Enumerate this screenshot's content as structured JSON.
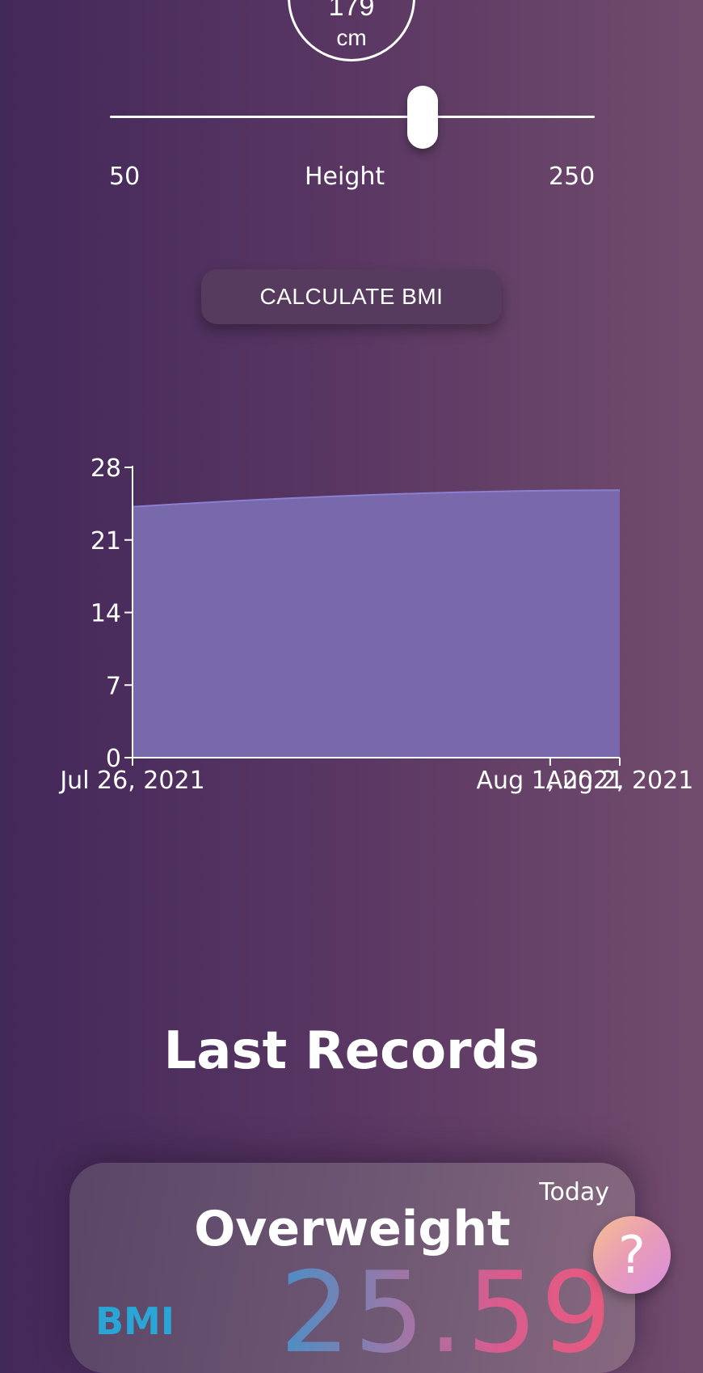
{
  "height_display": {
    "value": "179",
    "unit": "cm"
  },
  "height_slider": {
    "label": "Height",
    "min": "50",
    "max": "250",
    "value": 179
  },
  "calculate_button": {
    "label": "CALCULATE BMI"
  },
  "chart_data": {
    "type": "area",
    "title": "",
    "xlabel": "",
    "ylabel": "",
    "x": [
      "2021-07-26",
      "2021-08-02"
    ],
    "values": [
      24.2,
      25.8
    ],
    "y_ticks": [
      "0",
      "7",
      "14",
      "21",
      "28"
    ],
    "x_ticks": [
      "Jul 26, 2021",
      "Aug 1, 2021",
      "Aug 2, 2021"
    ],
    "ylim": [
      0,
      28
    ],
    "fill_color": "#7a6bb0",
    "line_color": "#8a7fd2",
    "grid": false
  },
  "records": {
    "title": "Last Records",
    "items": [
      {
        "date": "Today",
        "status": "Overweight",
        "bmi_label": "BMI",
        "bmi_value": "25.59"
      }
    ]
  },
  "help_button": {
    "label": "?"
  }
}
